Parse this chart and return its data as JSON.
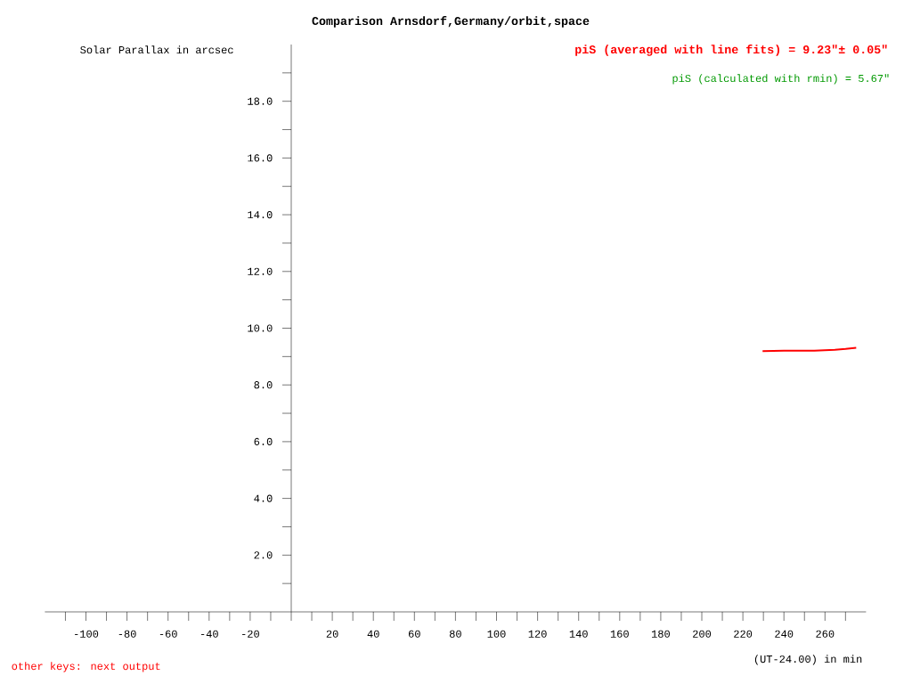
{
  "chart_data": {
    "type": "line",
    "title": "Comparison Arnsdorf,Germany/orbit,space",
    "ylabel": "Solar Parallax in arcsec",
    "annotations": [
      "piS (averaged with line fits) = 9.23\"± 0.05\"",
      "piS   (calculated with rmin)  = 5.67\"",
      "other keys: next output",
      "(UT-24.00) in min"
    ],
    "x": [
      229.6,
      240,
      254.8,
      264.8,
      270,
      275.2
    ],
    "series": [
      {
        "color": "#ff0000",
        "values": [
          9.19,
          9.21,
          9.21,
          9.24,
          9.27,
          9.31
        ]
      }
    ],
    "xlim": [
      -120,
      280
    ],
    "ylim": [
      0,
      20
    ],
    "xticks": [
      {
        "value": -110,
        "label": null
      },
      -100,
      {
        "value": -90,
        "label": null
      },
      -80,
      {
        "value": -70,
        "label": null
      },
      -60,
      {
        "value": -50,
        "label": null
      },
      -40,
      {
        "value": -30,
        "label": null
      },
      -20,
      {
        "value": -10,
        "label": null
      },
      {
        "value": 0,
        "label": null
      },
      {
        "value": 10,
        "label": null
      },
      20,
      {
        "value": 30,
        "label": null
      },
      40,
      {
        "value": 50,
        "label": null
      },
      60,
      {
        "value": 70,
        "label": null
      },
      80,
      {
        "value": 90,
        "label": null
      },
      100,
      {
        "value": 110,
        "label": null
      },
      120,
      {
        "value": 130,
        "label": null
      },
      140,
      {
        "value": 150,
        "label": null
      },
      160,
      {
        "value": 170,
        "label": null
      },
      180,
      {
        "value": 190,
        "label": null
      },
      200,
      {
        "value": 210,
        "label": null
      },
      220,
      {
        "value": 230,
        "label": null
      },
      240,
      {
        "value": 250,
        "label": null
      },
      260,
      {
        "value": 270,
        "label": null
      }
    ],
    "yticks": [
      {
        "value": 1,
        "label": null
      },
      {
        "value": 2,
        "label": "2.0"
      },
      {
        "value": 3,
        "label": null
      },
      {
        "value": 4,
        "label": "4.0"
      },
      {
        "value": 5,
        "label": null
      },
      {
        "value": 6,
        "label": "6.0"
      },
      {
        "value": 7,
        "label": null
      },
      {
        "value": 8,
        "label": "8.0"
      },
      {
        "value": 9,
        "label": null
      },
      {
        "value": 10,
        "label": "10.0"
      },
      {
        "value": 11,
        "label": null
      },
      {
        "value": 12,
        "label": "12.0"
      },
      {
        "value": 13,
        "label": null
      },
      {
        "value": 14,
        "label": "14.0"
      },
      {
        "value": 15,
        "label": null
      },
      {
        "value": 16,
        "label": "16.0"
      },
      {
        "value": 17,
        "label": null
      },
      {
        "value": 18,
        "label": "18.0"
      },
      {
        "value": 19,
        "label": null
      }
    ],
    "grid": false,
    "marker": "none",
    "line_style": "solid"
  }
}
